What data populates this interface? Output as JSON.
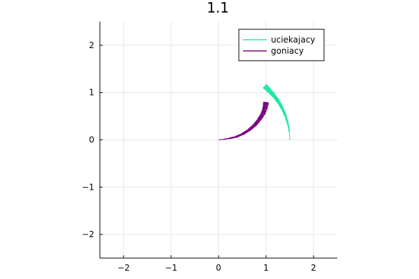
{
  "chart_data": {
    "type": "line",
    "title": "1.1",
    "xlabel": "",
    "ylabel": "",
    "xlim": [
      -2.5,
      2.5
    ],
    "ylim": [
      -2.5,
      2.5
    ],
    "grid": true,
    "legend_position": "top-right",
    "x_ticks": [
      -2,
      -1,
      0,
      1,
      2
    ],
    "y_ticks": [
      -2,
      -1,
      0,
      1,
      2
    ],
    "x_tick_labels": [
      "−2",
      "−1",
      "0",
      "1",
      "2"
    ],
    "y_tick_labels": [
      "−2",
      "−1",
      "0",
      "1",
      "2"
    ],
    "series": [
      {
        "name": "uciekajacy",
        "color": "#1ee8a0",
        "x": [
          1.5,
          1.49,
          1.46,
          1.41,
          1.34,
          1.26,
          1.17,
          1.08,
          1.0,
          0.97
        ],
        "y": [
          0.0,
          0.17,
          0.34,
          0.51,
          0.67,
          0.81,
          0.93,
          1.03,
          1.11,
          1.14
        ]
      },
      {
        "name": "goniacy",
        "color": "#7a0a80",
        "x": [
          0.0,
          0.1,
          0.22,
          0.36,
          0.5,
          0.63,
          0.75,
          0.85,
          0.93,
          0.97,
          0.99,
          1.0
        ],
        "y": [
          0.0,
          0.01,
          0.03,
          0.06,
          0.12,
          0.2,
          0.3,
          0.42,
          0.54,
          0.64,
          0.73,
          0.8
        ]
      }
    ]
  }
}
